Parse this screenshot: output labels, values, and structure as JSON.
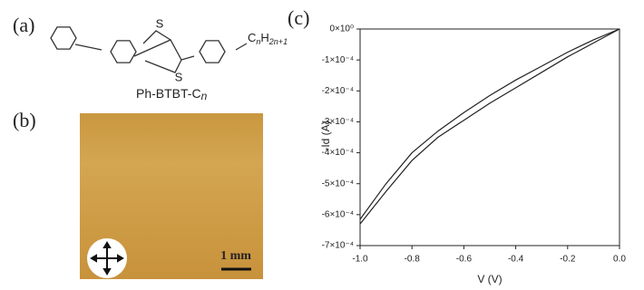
{
  "panels": {
    "a": {
      "label": "(a)",
      "atoms": [
        "S",
        "S"
      ],
      "compound": {
        "name": "Ph-BTBT-C",
        "name_sub": "n"
      },
      "substituent": {
        "c": "C",
        "c_sub": "n",
        "h": "H",
        "h_sub": "2n+1"
      }
    },
    "b": {
      "label": "(b)",
      "scale_bar": "1 mm"
    },
    "c": {
      "label": "(c)"
    }
  },
  "chart_data": {
    "type": "line",
    "x_label": "V (V)",
    "y_label": "-Id (A)",
    "x": [
      -1.0,
      -0.9,
      -0.8,
      -0.7,
      -0.6,
      -0.5,
      -0.4,
      -0.3,
      -0.2,
      -0.1,
      0.0
    ],
    "series": [
      {
        "color": "#222222",
        "values": [
          -0.000615,
          -0.0005,
          -0.0004,
          -0.00033,
          -0.00027,
          -0.000215,
          -0.000165,
          -0.00012,
          -7.5e-05,
          -3.5e-05,
          0
        ]
      },
      {
        "color": "#222222",
        "values": [
          -0.00063,
          -0.000525,
          -0.000425,
          -0.00035,
          -0.000295,
          -0.00024,
          -0.00019,
          -0.00014,
          -9e-05,
          -4.5e-05,
          0
        ]
      }
    ],
    "xlim": [
      -1.0,
      0.0
    ],
    "ylim": [
      -0.0007,
      0
    ],
    "xticks": [
      {
        "value": -1.0,
        "label": "-1.0"
      },
      -0.8,
      -0.6,
      -0.4,
      -0.2,
      {
        "value": 0.0,
        "label": "0.0"
      }
    ],
    "yticks": [
      {
        "value": 0,
        "label": "0×10⁰"
      },
      {
        "value": -0.0001,
        "label": "-1×10⁻⁴"
      },
      {
        "value": -0.0002,
        "label": "-2×10⁻⁴"
      },
      {
        "value": -0.0003,
        "label": "-3×10⁻⁴"
      },
      {
        "value": -0.0004,
        "label": "-4×10⁻⁴"
      },
      {
        "value": -0.0005,
        "label": "-5×10⁻⁴"
      },
      {
        "value": -0.0006,
        "label": "-6×10⁻⁴"
      },
      {
        "value": -0.0007,
        "label": "-7×10⁻⁴"
      }
    ]
  }
}
